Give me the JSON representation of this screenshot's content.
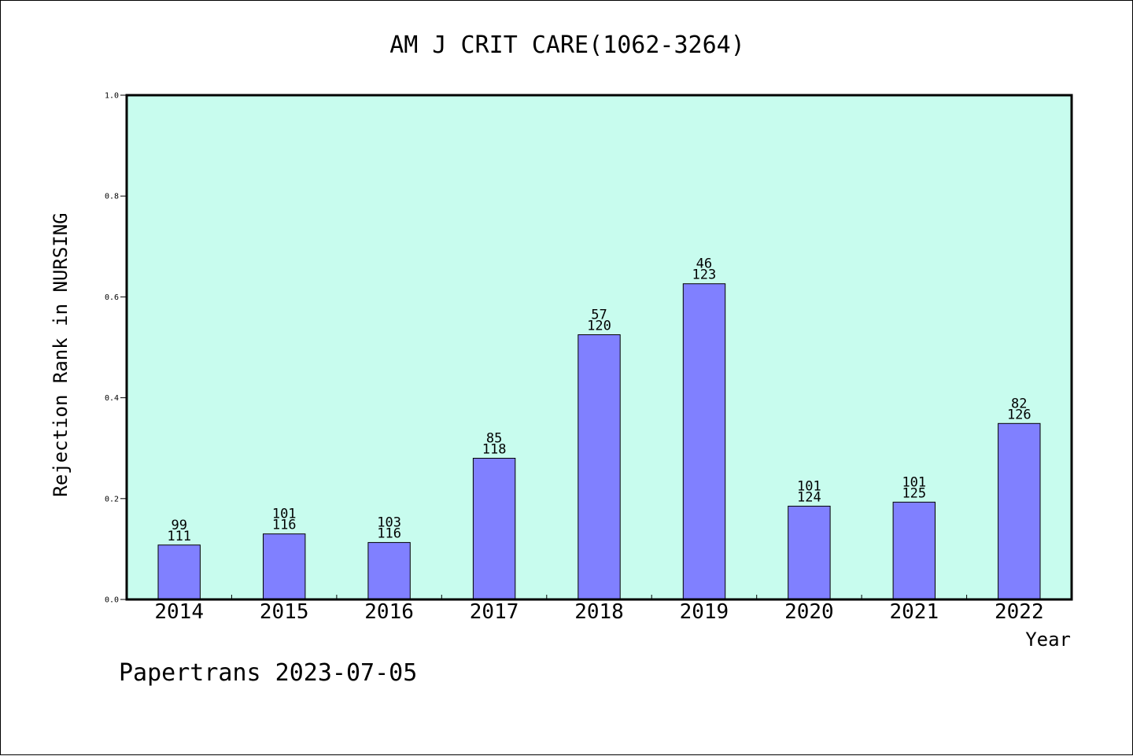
{
  "colors": {
    "plot_background": "#c8fcee",
    "bar_fill": "#8080ff",
    "bar_stroke": "#000000",
    "axis": "#000000",
    "page_background": "#ffffff"
  },
  "footer": "Papertrans 2023-07-05",
  "chart_data": {
    "type": "bar",
    "title": "AM J CRIT CARE(1062-3264)",
    "xlabel": "Year",
    "ylabel": "Rejection Rank in NURSING",
    "ylim": [
      0,
      1.0
    ],
    "yticks": [
      "0.0",
      "0.2",
      "0.4",
      "0.6",
      "0.8",
      "1.0"
    ],
    "ytick_values": [
      0.0,
      0.2,
      0.4,
      0.6,
      0.8,
      1.0
    ],
    "grid": false,
    "legend": "none",
    "categories": [
      "2014",
      "2015",
      "2016",
      "2017",
      "2018",
      "2019",
      "2020",
      "2021",
      "2022"
    ],
    "values": [
      0.108,
      0.13,
      0.113,
      0.28,
      0.525,
      0.626,
      0.185,
      0.193,
      0.349
    ],
    "labels_top": [
      "99",
      "101",
      "103",
      "85",
      "57",
      "46",
      "101",
      "101",
      "82"
    ],
    "labels_bottom": [
      "111",
      "116",
      "116",
      "118",
      "120",
      "123",
      "124",
      "125",
      "126"
    ]
  }
}
